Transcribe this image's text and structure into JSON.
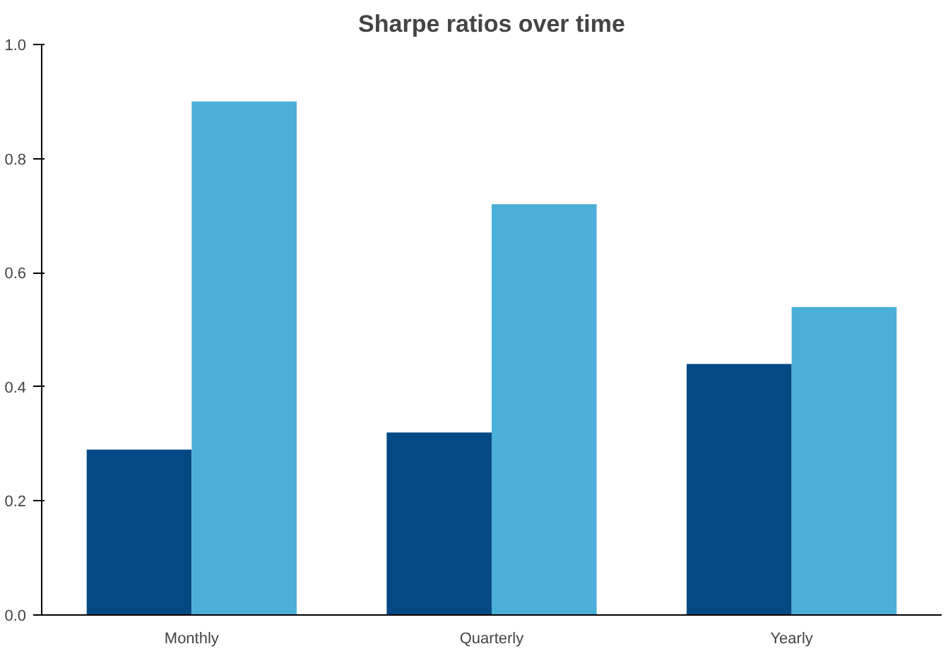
{
  "chart_data": {
    "type": "bar",
    "title": "Sharpe ratios over time",
    "categories": [
      "Monthly",
      "Quarterly",
      "Yearly"
    ],
    "series": [
      {
        "color": "#034a85",
        "values": [
          0.29,
          0.32,
          0.44
        ]
      },
      {
        "color": "#4bafd9",
        "values": [
          0.9,
          0.72,
          0.54
        ]
      }
    ],
    "ylim": [
      0,
      1
    ],
    "yticks": [
      {
        "value": 0,
        "label": "0.0"
      },
      {
        "value": 0.2,
        "label": "0.2"
      },
      {
        "value": 0.4,
        "label": "0.4"
      },
      {
        "value": 0.6,
        "label": "0.6"
      },
      {
        "value": 0.8,
        "label": "0.8"
      },
      {
        "value": 1,
        "label": "1.0"
      }
    ],
    "grid": false
  }
}
